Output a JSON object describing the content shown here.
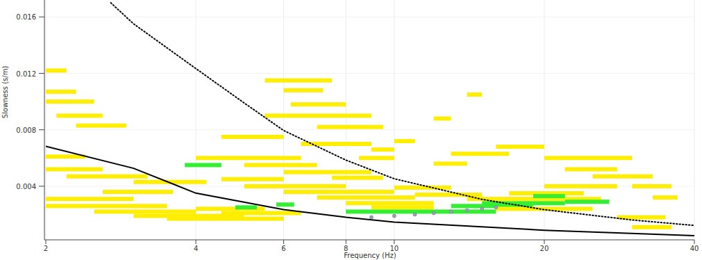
{
  "chart_data": {
    "type": "dispersion",
    "x_label": "Frequency (Hz)",
    "y_label": "Slowness (s/m)",
    "log": "x",
    "grid": true,
    "xlim": [
      2,
      40
    ],
    "ylim": [
      0.0002,
      0.0172
    ],
    "xticks": [
      2,
      4,
      6,
      8,
      10,
      20,
      40
    ],
    "yticks": [
      0.004,
      0.008,
      0.012,
      0.016
    ],
    "series": [
      {
        "type": "line",
        "line_style": "solid",
        "color": "#000000",
        "x": [
          2,
          3,
          4,
          6,
          8,
          10,
          20,
          40
        ],
        "values": [
          0.00683,
          0.00527,
          0.00351,
          0.00234,
          0.0018,
          0.00146,
          0.00088,
          0.00049
        ]
      },
      {
        "type": "line",
        "line_style": "dotted",
        "color": "#000000",
        "x": [
          2.7,
          3,
          4,
          5,
          6,
          8,
          10,
          15,
          20,
          30,
          40
        ],
        "values": [
          0.017,
          0.01551,
          0.01234,
          0.0099,
          0.00795,
          0.00585,
          0.00453,
          0.00307,
          0.00234,
          0.00161,
          0.00122
        ]
      },
      {
        "type": "scatter",
        "marker": "circle",
        "color": "#a0a0a0",
        "x": [
          9,
          10,
          11,
          12,
          13,
          14,
          15,
          16
        ],
        "values": [
          0.0018,
          0.0019,
          0.002,
          0.0021,
          0.0022,
          0.0023,
          0.0024,
          0.0025
        ]
      }
    ],
    "cells": [
      {
        "x": [
          2.0,
          2.2
        ],
        "value": 0.0122,
        "level": 1
      },
      {
        "x": [
          2.0,
          2.3
        ],
        "value": 0.0107,
        "level": 1
      },
      {
        "x": [
          2.0,
          2.5
        ],
        "value": 0.01,
        "level": 1
      },
      {
        "x": [
          2.1,
          2.6
        ],
        "value": 0.009,
        "level": 1
      },
      {
        "x": [
          2.3,
          2.9
        ],
        "value": 0.0083,
        "level": 1
      },
      {
        "x": [
          2.0,
          2.4
        ],
        "value": 0.0061,
        "level": 1
      },
      {
        "x": [
          2.0,
          2.6
        ],
        "value": 0.0052,
        "level": 1
      },
      {
        "x": [
          2.2,
          3.2
        ],
        "value": 0.0047,
        "level": 1
      },
      {
        "x": [
          2.0,
          3.0
        ],
        "value": 0.0031,
        "level": 1
      },
      {
        "x": [
          2.0,
          3.5
        ],
        "value": 0.0026,
        "level": 1
      },
      {
        "x": [
          2.5,
          4.0
        ],
        "value": 0.0022,
        "level": 1
      },
      {
        "x": [
          3.0,
          5.0
        ],
        "value": 0.0019,
        "level": 1
      },
      {
        "x": [
          3.5,
          6.0
        ],
        "value": 0.0017,
        "level": 1
      },
      {
        "x": [
          4.0,
          5.5
        ],
        "value": 0.0024,
        "level": 1
      },
      {
        "x": [
          4.5,
          6.5
        ],
        "value": 0.0021,
        "level": 1
      },
      {
        "x": [
          5.5,
          7.5
        ],
        "value": 0.0115,
        "level": 1
      },
      {
        "x": [
          6.0,
          7.2
        ],
        "value": 0.0108,
        "level": 1
      },
      {
        "x": [
          6.2,
          8.0
        ],
        "value": 0.0098,
        "level": 1
      },
      {
        "x": [
          5.5,
          9.0
        ],
        "value": 0.009,
        "level": 1
      },
      {
        "x": [
          7.0,
          9.5
        ],
        "value": 0.0082,
        "level": 1
      },
      {
        "x": [
          4.5,
          6.0
        ],
        "value": 0.0075,
        "level": 1
      },
      {
        "x": [
          6.5,
          9.0
        ],
        "value": 0.007,
        "level": 1
      },
      {
        "x": [
          4.0,
          6.5
        ],
        "value": 0.006,
        "level": 1
      },
      {
        "x": [
          5.0,
          7.0
        ],
        "value": 0.0055,
        "level": 1
      },
      {
        "x": [
          6.0,
          9.0
        ],
        "value": 0.005,
        "level": 1
      },
      {
        "x": [
          3.8,
          4.5
        ],
        "value": 0.0055,
        "level": 2
      },
      {
        "x": [
          4.5,
          6.0
        ],
        "value": 0.0045,
        "level": 1
      },
      {
        "x": [
          5.0,
          8.0
        ],
        "value": 0.004,
        "level": 1
      },
      {
        "x": [
          6.0,
          10.0
        ],
        "value": 0.0036,
        "level": 1
      },
      {
        "x": [
          7.0,
          11.0
        ],
        "value": 0.0032,
        "level": 1
      },
      {
        "x": [
          8.0,
          12.0
        ],
        "value": 0.0028,
        "level": 1
      },
      {
        "x": [
          5.8,
          6.3
        ],
        "value": 0.0027,
        "level": 2
      },
      {
        "x": [
          4.8,
          5.3
        ],
        "value": 0.0025,
        "level": 2
      },
      {
        "x": [
          9.0,
          12.0
        ],
        "value": 0.0025,
        "level": 1
      },
      {
        "x": [
          10.0,
          16.0
        ],
        "value": 0.0022,
        "level": 2
      },
      {
        "x": [
          13.0,
          19.0
        ],
        "value": 0.0026,
        "level": 2
      },
      {
        "x": [
          15.0,
          22.0
        ],
        "value": 0.0028,
        "level": 2
      },
      {
        "x": [
          16.0,
          25.0
        ],
        "value": 0.0024,
        "level": 1
      },
      {
        "x": [
          14.0,
          26.0
        ],
        "value": 0.0031,
        "level": 1
      },
      {
        "x": [
          17.0,
          24.0
        ],
        "value": 0.0035,
        "level": 1
      },
      {
        "x": [
          20.0,
          28.0
        ],
        "value": 0.004,
        "level": 1
      },
      {
        "x": [
          20.0,
          30.0
        ],
        "value": 0.006,
        "level": 1
      },
      {
        "x": [
          22.0,
          28.0
        ],
        "value": 0.0052,
        "level": 1
      },
      {
        "x": [
          25.0,
          33.0
        ],
        "value": 0.0047,
        "level": 1
      },
      {
        "x": [
          30.0,
          36.0
        ],
        "value": 0.004,
        "level": 1
      },
      {
        "x": [
          33.0,
          37.0
        ],
        "value": 0.0032,
        "level": 1
      },
      {
        "x": [
          28.0,
          35.0
        ],
        "value": 0.0018,
        "level": 1
      },
      {
        "x": [
          30.0,
          36.0
        ],
        "value": 0.0011,
        "level": 1
      },
      {
        "x": [
          12.0,
          14.0
        ],
        "value": 0.0056,
        "level": 1
      },
      {
        "x": [
          12.0,
          13.0
        ],
        "value": 0.0088,
        "level": 1
      },
      {
        "x": [
          13.0,
          17.0
        ],
        "value": 0.0063,
        "level": 1
      },
      {
        "x": [
          16.0,
          20.0
        ],
        "value": 0.0068,
        "level": 1
      },
      {
        "x": [
          9.0,
          10.0
        ],
        "value": 0.0066,
        "level": 1
      },
      {
        "x": [
          10.0,
          11.0
        ],
        "value": 0.0072,
        "level": 1
      },
      {
        "x": [
          8.5,
          10.0
        ],
        "value": 0.006,
        "level": 1
      },
      {
        "x": [
          19.0,
          22.0
        ],
        "value": 0.0033,
        "level": 2
      },
      {
        "x": [
          8.0,
          10.0
        ],
        "value": 0.0022,
        "level": 2
      },
      {
        "x": [
          2.6,
          3.6
        ],
        "value": 0.0036,
        "level": 1
      },
      {
        "x": [
          3.0,
          4.2
        ],
        "value": 0.0043,
        "level": 1
      },
      {
        "x": [
          7.5,
          9.5
        ],
        "value": 0.0046,
        "level": 1
      },
      {
        "x": [
          10.0,
          13.0
        ],
        "value": 0.0039,
        "level": 1
      },
      {
        "x": [
          11.0,
          15.0
        ],
        "value": 0.0034,
        "level": 1
      },
      {
        "x": [
          22.0,
          27.0
        ],
        "value": 0.0029,
        "level": 2
      },
      {
        "x": [
          14.0,
          15.0
        ],
        "value": 0.0105,
        "level": 1
      }
    ]
  }
}
